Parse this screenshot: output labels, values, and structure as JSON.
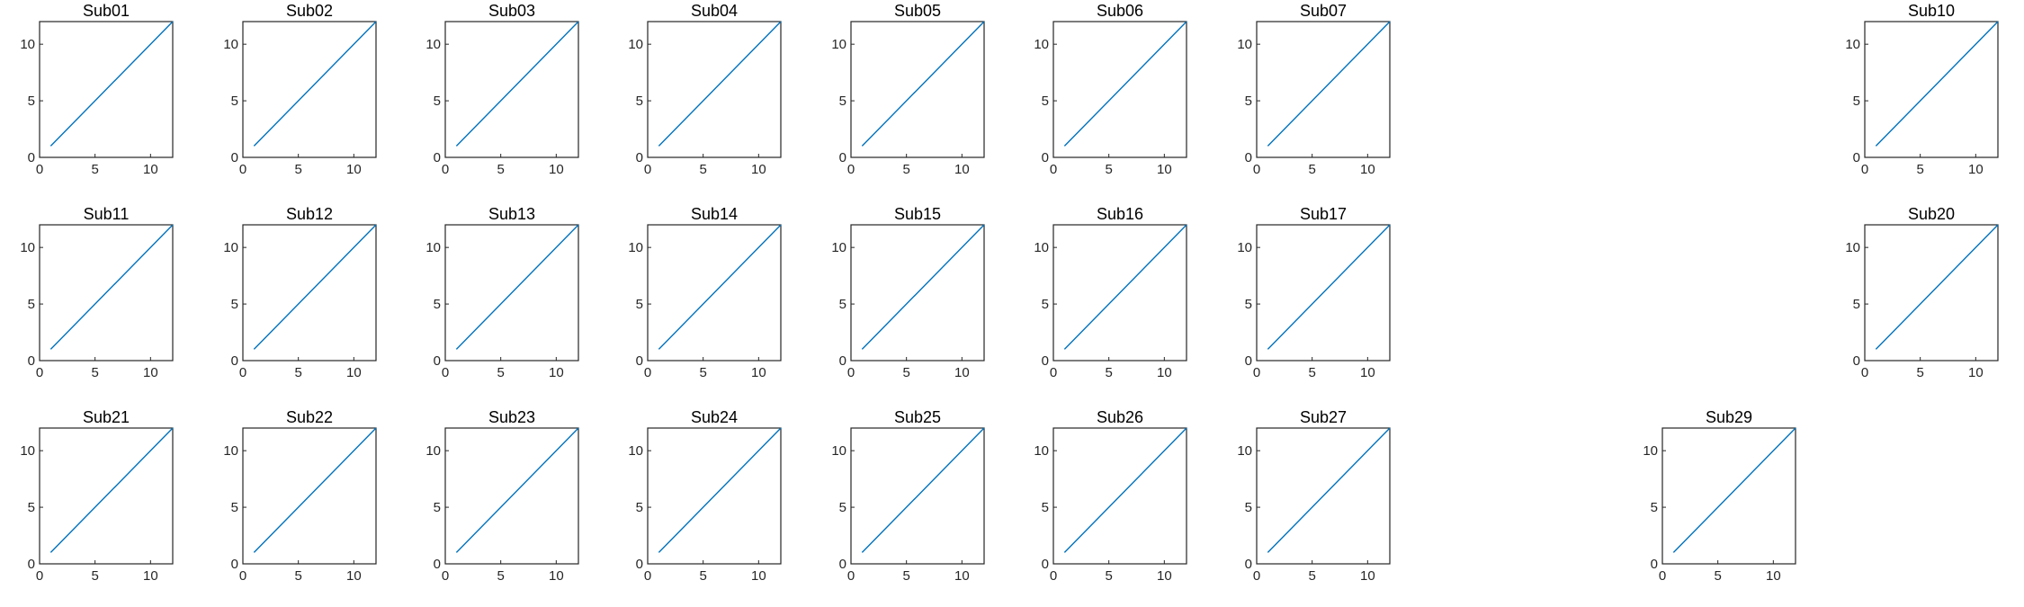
{
  "colors": {
    "series": "#0072BD",
    "axes": "#262626"
  },
  "chart_data": [
    {
      "type": "line",
      "title": "Sub01",
      "x": [
        1,
        12
      ],
      "y": [
        1,
        12
      ],
      "xlim": [
        0,
        12
      ],
      "ylim": [
        0,
        12
      ],
      "xticks": [
        0,
        5,
        10
      ],
      "yticks": [
        0,
        5,
        10
      ],
      "grid": false
    },
    {
      "type": "line",
      "title": "Sub02",
      "x": [
        1,
        12
      ],
      "y": [
        1,
        12
      ],
      "xlim": [
        0,
        12
      ],
      "ylim": [
        0,
        12
      ],
      "xticks": [
        0,
        5,
        10
      ],
      "yticks": [
        0,
        5,
        10
      ],
      "grid": false
    },
    {
      "type": "line",
      "title": "Sub03",
      "x": [
        1,
        12
      ],
      "y": [
        1,
        12
      ],
      "xlim": [
        0,
        12
      ],
      "ylim": [
        0,
        12
      ],
      "xticks": [
        0,
        5,
        10
      ],
      "yticks": [
        0,
        5,
        10
      ],
      "grid": false
    },
    {
      "type": "line",
      "title": "Sub04",
      "x": [
        1,
        12
      ],
      "y": [
        1,
        12
      ],
      "xlim": [
        0,
        12
      ],
      "ylim": [
        0,
        12
      ],
      "xticks": [
        0,
        5,
        10
      ],
      "yticks": [
        0,
        5,
        10
      ],
      "grid": false
    },
    {
      "type": "line",
      "title": "Sub05",
      "x": [
        1,
        12
      ],
      "y": [
        1,
        12
      ],
      "xlim": [
        0,
        12
      ],
      "ylim": [
        0,
        12
      ],
      "xticks": [
        0,
        5,
        10
      ],
      "yticks": [
        0,
        5,
        10
      ],
      "grid": false
    },
    {
      "type": "line",
      "title": "Sub06",
      "x": [
        1,
        12
      ],
      "y": [
        1,
        12
      ],
      "xlim": [
        0,
        12
      ],
      "ylim": [
        0,
        12
      ],
      "xticks": [
        0,
        5,
        10
      ],
      "yticks": [
        0,
        5,
        10
      ],
      "grid": false
    },
    {
      "type": "line",
      "title": "Sub07",
      "x": [
        1,
        12
      ],
      "y": [
        1,
        12
      ],
      "xlim": [
        0,
        12
      ],
      "ylim": [
        0,
        12
      ],
      "xticks": [
        0,
        5,
        10
      ],
      "yticks": [
        0,
        5,
        10
      ],
      "grid": false
    },
    {
      "type": "line",
      "title": "Sub10",
      "x": [
        1,
        12
      ],
      "y": [
        1,
        12
      ],
      "xlim": [
        0,
        12
      ],
      "ylim": [
        0,
        12
      ],
      "xticks": [
        0,
        5,
        10
      ],
      "yticks": [
        0,
        5,
        10
      ],
      "grid": false
    },
    {
      "type": "line",
      "title": "Sub11",
      "x": [
        1,
        12
      ],
      "y": [
        1,
        12
      ],
      "xlim": [
        0,
        12
      ],
      "ylim": [
        0,
        12
      ],
      "xticks": [
        0,
        5,
        10
      ],
      "yticks": [
        0,
        5,
        10
      ],
      "grid": false
    },
    {
      "type": "line",
      "title": "Sub12",
      "x": [
        1,
        12
      ],
      "y": [
        1,
        12
      ],
      "xlim": [
        0,
        12
      ],
      "ylim": [
        0,
        12
      ],
      "xticks": [
        0,
        5,
        10
      ],
      "yticks": [
        0,
        5,
        10
      ],
      "grid": false
    },
    {
      "type": "line",
      "title": "Sub13",
      "x": [
        1,
        12
      ],
      "y": [
        1,
        12
      ],
      "xlim": [
        0,
        12
      ],
      "ylim": [
        0,
        12
      ],
      "xticks": [
        0,
        5,
        10
      ],
      "yticks": [
        0,
        5,
        10
      ],
      "grid": false
    },
    {
      "type": "line",
      "title": "Sub14",
      "x": [
        1,
        12
      ],
      "y": [
        1,
        12
      ],
      "xlim": [
        0,
        12
      ],
      "ylim": [
        0,
        12
      ],
      "xticks": [
        0,
        5,
        10
      ],
      "yticks": [
        0,
        5,
        10
      ],
      "grid": false
    },
    {
      "type": "line",
      "title": "Sub15",
      "x": [
        1,
        12
      ],
      "y": [
        1,
        12
      ],
      "xlim": [
        0,
        12
      ],
      "ylim": [
        0,
        12
      ],
      "xticks": [
        0,
        5,
        10
      ],
      "yticks": [
        0,
        5,
        10
      ],
      "grid": false
    },
    {
      "type": "line",
      "title": "Sub16",
      "x": [
        1,
        12
      ],
      "y": [
        1,
        12
      ],
      "xlim": [
        0,
        12
      ],
      "ylim": [
        0,
        12
      ],
      "xticks": [
        0,
        5,
        10
      ],
      "yticks": [
        0,
        5,
        10
      ],
      "grid": false
    },
    {
      "type": "line",
      "title": "Sub17",
      "x": [
        1,
        12
      ],
      "y": [
        1,
        12
      ],
      "xlim": [
        0,
        12
      ],
      "ylim": [
        0,
        12
      ],
      "xticks": [
        0,
        5,
        10
      ],
      "yticks": [
        0,
        5,
        10
      ],
      "grid": false
    },
    {
      "type": "line",
      "title": "Sub20",
      "x": [
        1,
        12
      ],
      "y": [
        1,
        12
      ],
      "xlim": [
        0,
        12
      ],
      "ylim": [
        0,
        12
      ],
      "xticks": [
        0,
        5,
        10
      ],
      "yticks": [
        0,
        5,
        10
      ],
      "grid": false
    },
    {
      "type": "line",
      "title": "Sub21",
      "x": [
        1,
        12
      ],
      "y": [
        1,
        12
      ],
      "xlim": [
        0,
        12
      ],
      "ylim": [
        0,
        12
      ],
      "xticks": [
        0,
        5,
        10
      ],
      "yticks": [
        0,
        5,
        10
      ],
      "grid": false
    },
    {
      "type": "line",
      "title": "Sub22",
      "x": [
        1,
        12
      ],
      "y": [
        1,
        12
      ],
      "xlim": [
        0,
        12
      ],
      "ylim": [
        0,
        12
      ],
      "xticks": [
        0,
        5,
        10
      ],
      "yticks": [
        0,
        5,
        10
      ],
      "grid": false
    },
    {
      "type": "line",
      "title": "Sub23",
      "x": [
        1,
        12
      ],
      "y": [
        1,
        12
      ],
      "xlim": [
        0,
        12
      ],
      "ylim": [
        0,
        12
      ],
      "xticks": [
        0,
        5,
        10
      ],
      "yticks": [
        0,
        5,
        10
      ],
      "grid": false
    },
    {
      "type": "line",
      "title": "Sub24",
      "x": [
        1,
        12
      ],
      "y": [
        1,
        12
      ],
      "xlim": [
        0,
        12
      ],
      "ylim": [
        0,
        12
      ],
      "xticks": [
        0,
        5,
        10
      ],
      "yticks": [
        0,
        5,
        10
      ],
      "grid": false
    },
    {
      "type": "line",
      "title": "Sub25",
      "x": [
        1,
        12
      ],
      "y": [
        1,
        12
      ],
      "xlim": [
        0,
        12
      ],
      "ylim": [
        0,
        12
      ],
      "xticks": [
        0,
        5,
        10
      ],
      "yticks": [
        0,
        5,
        10
      ],
      "grid": false
    },
    {
      "type": "line",
      "title": "Sub26",
      "x": [
        1,
        12
      ],
      "y": [
        1,
        12
      ],
      "xlim": [
        0,
        12
      ],
      "ylim": [
        0,
        12
      ],
      "xticks": [
        0,
        5,
        10
      ],
      "yticks": [
        0,
        5,
        10
      ],
      "grid": false
    },
    {
      "type": "line",
      "title": "Sub27",
      "x": [
        1,
        12
      ],
      "y": [
        1,
        12
      ],
      "xlim": [
        0,
        12
      ],
      "ylim": [
        0,
        12
      ],
      "xticks": [
        0,
        5,
        10
      ],
      "yticks": [
        0,
        5,
        10
      ],
      "grid": false
    },
    {
      "type": "line",
      "title": "Sub29",
      "x": [
        1,
        12
      ],
      "y": [
        1,
        12
      ],
      "xlim": [
        0,
        12
      ],
      "ylim": [
        0,
        12
      ],
      "xticks": [
        0,
        5,
        10
      ],
      "yticks": [
        0,
        5,
        10
      ],
      "grid": false
    }
  ]
}
